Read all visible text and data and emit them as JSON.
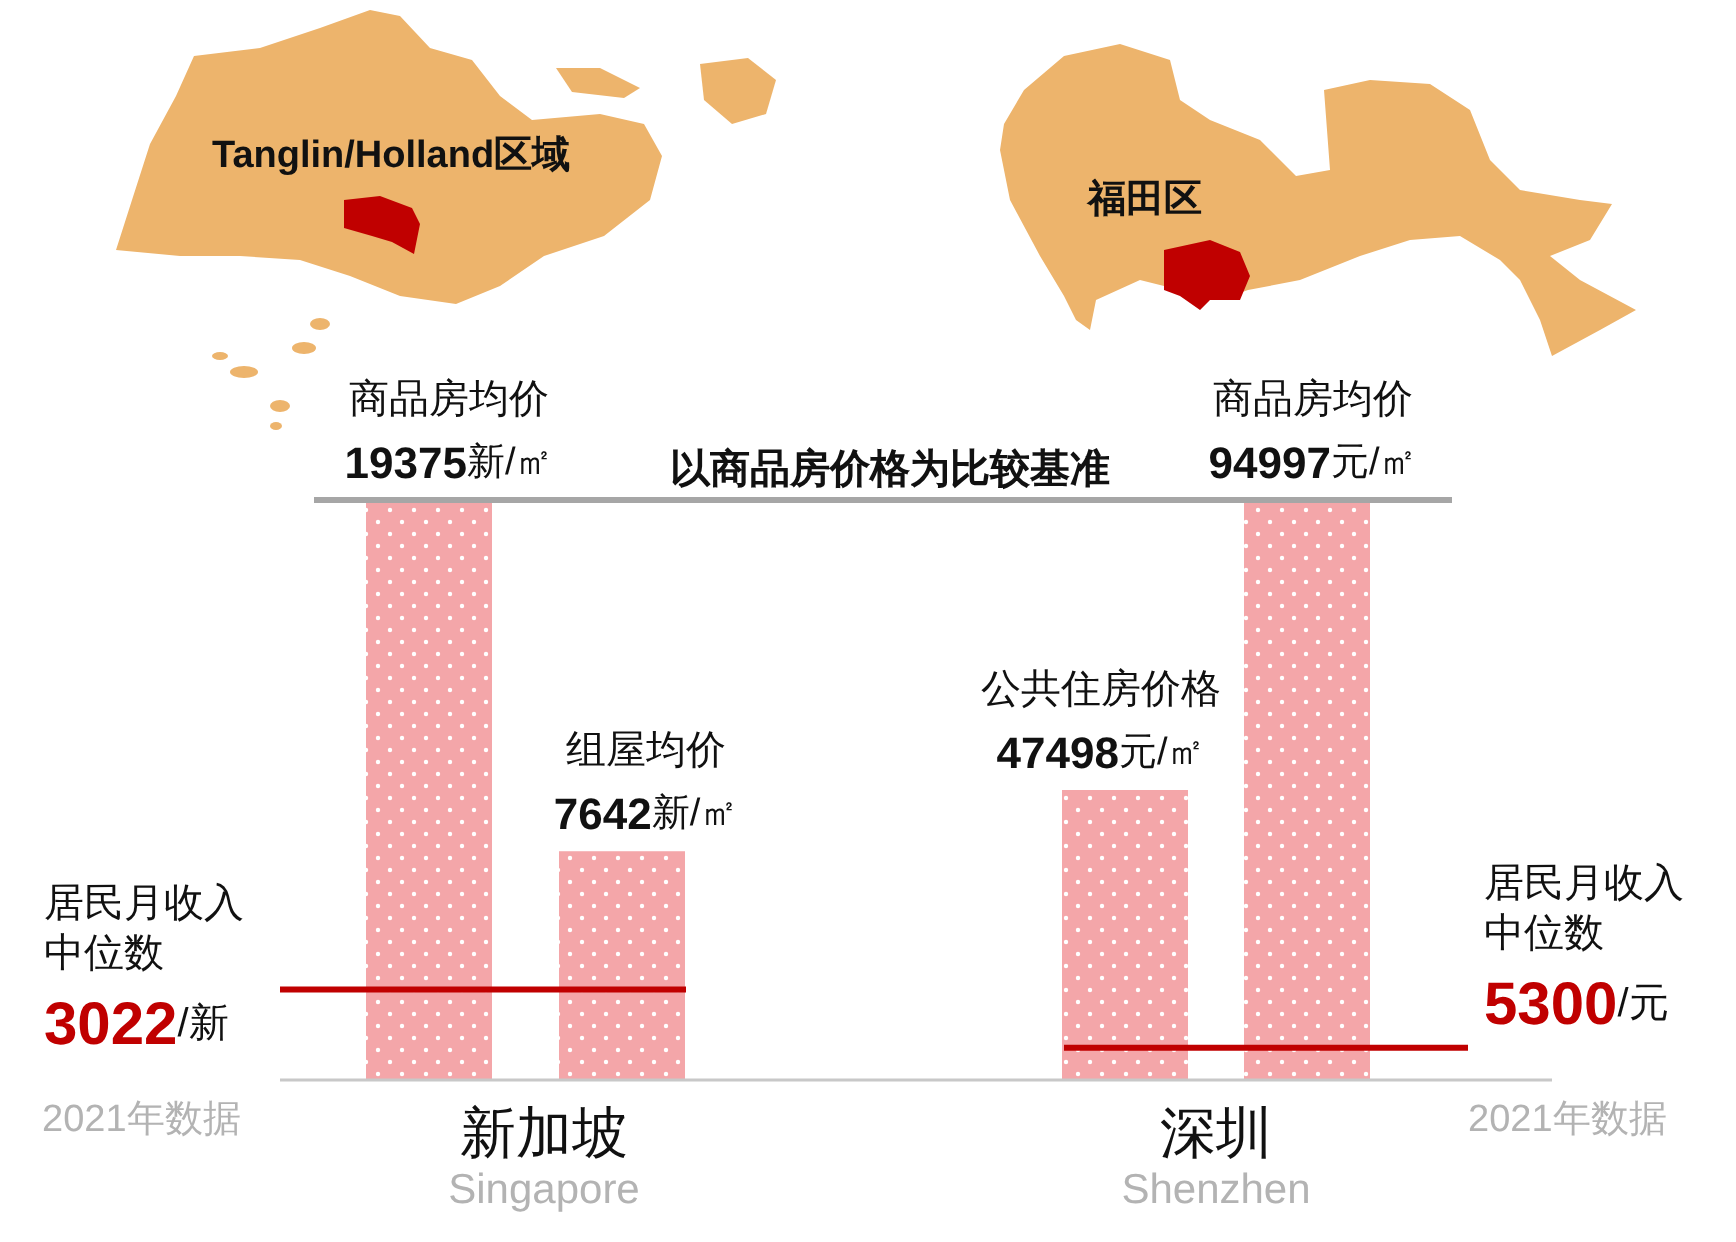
{
  "chart_data": [
    {
      "type": "bar",
      "categories": [
        "商品房均价",
        "组屋均价"
      ],
      "values": [
        19375,
        7642
      ],
      "value_labels": [
        "19375新/㎡",
        "7642新/㎡"
      ],
      "color": "#f4a6a9",
      "xlabel": "新加坡",
      "tick_labels": "x",
      "ref_lines": [
        {
          "axis": "y",
          "value": 19375,
          "label": "以商品房价格为比较基准",
          "color": "#a6a6a6"
        },
        {
          "axis": "y",
          "value": 3022,
          "label": "居民月收入中位数3022/新",
          "color": "#c00000"
        }
      ],
      "annotations": [
        "Tanglin/Holland区域",
        "Singapore",
        "2021年数据"
      ]
    },
    {
      "type": "bar",
      "categories": [
        "公共住房价格",
        "商品房均价"
      ],
      "values": [
        47498,
        94997
      ],
      "value_labels": [
        "47498元/㎡",
        "94997元/㎡"
      ],
      "color": "#f4a6a9",
      "xlabel": "深圳",
      "tick_labels": "x",
      "ref_lines": [
        {
          "axis": "y",
          "value": 94997,
          "color": "#a6a6a6"
        },
        {
          "axis": "y",
          "value": 5300,
          "label": "居民月收入中位数5300/元",
          "color": "#c00000"
        }
      ],
      "annotations": [
        "福田区",
        "Shenzhen",
        "2021年数据"
      ]
    }
  ]
}
